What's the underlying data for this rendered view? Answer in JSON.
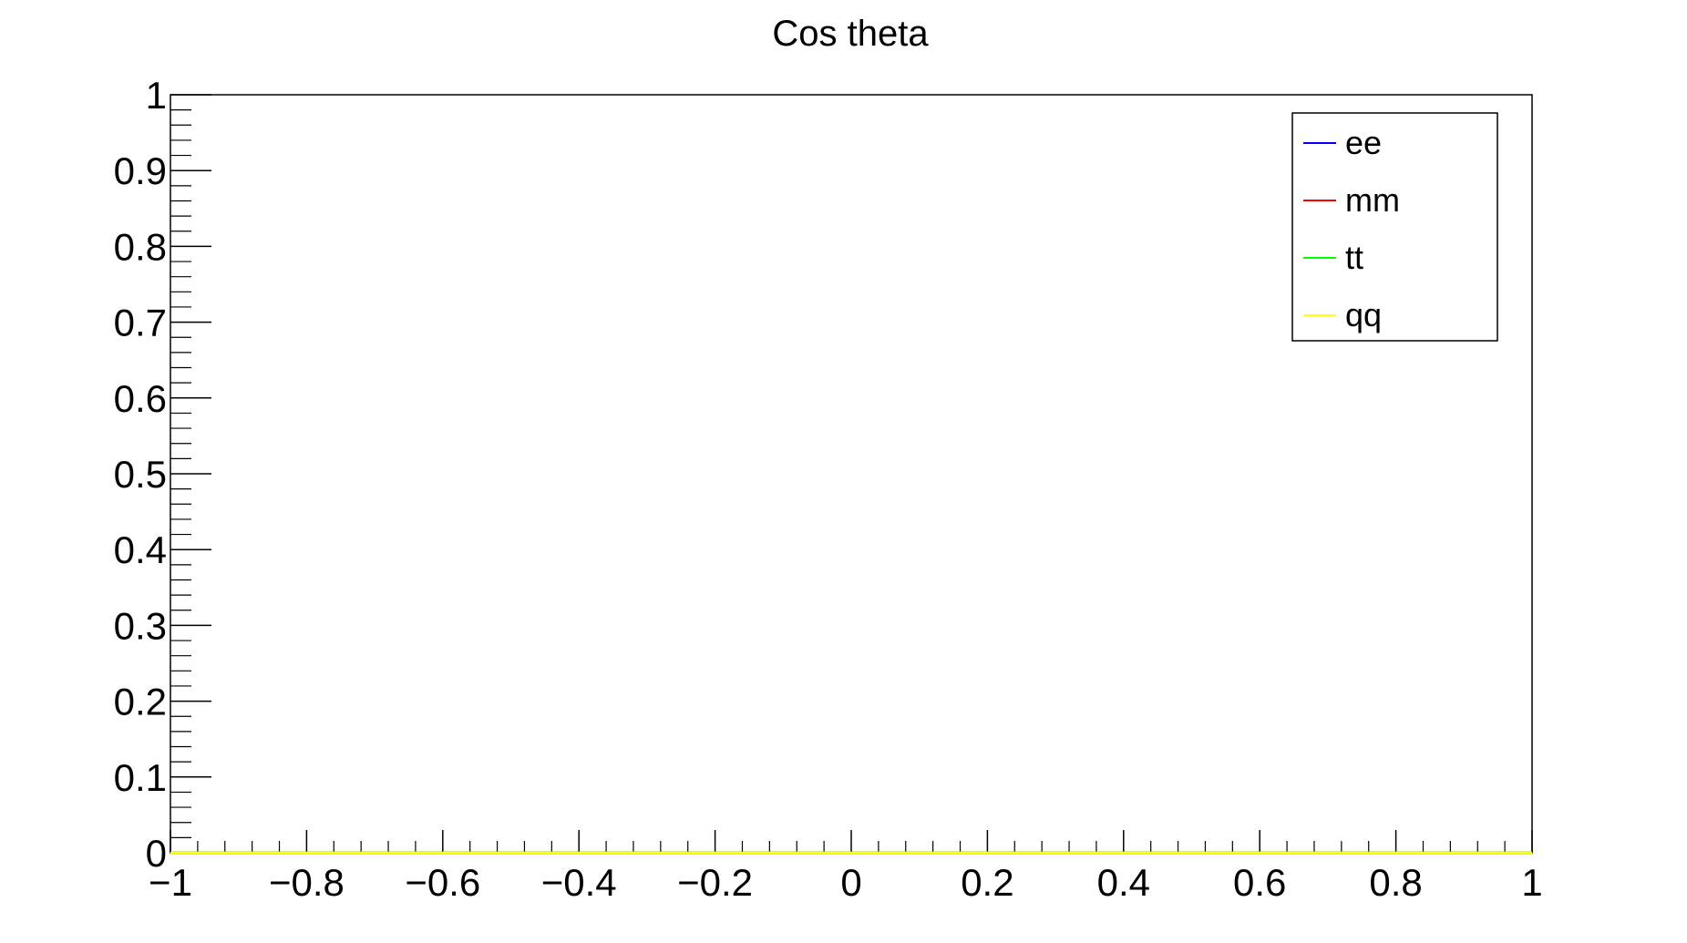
{
  "chart_data": {
    "type": "line",
    "title": "Cos theta",
    "xlabel": "",
    "ylabel": "",
    "xlim": [
      -1,
      1
    ],
    "ylim": [
      0,
      1
    ],
    "x_ticks": [
      -1,
      -0.8,
      -0.6,
      -0.4,
      -0.2,
      0,
      0.2,
      0.4,
      0.6,
      0.8,
      1
    ],
    "x_tick_labels": [
      "−1",
      "−0.8",
      "−0.6",
      "−0.4",
      "−0.2",
      "0",
      "0.2",
      "0.4",
      "0.6",
      "0.8",
      "1"
    ],
    "y_ticks": [
      0,
      0.1,
      0.2,
      0.3,
      0.4,
      0.5,
      0.6,
      0.7,
      0.8,
      0.9,
      1
    ],
    "y_tick_labels": [
      "0",
      "0.1",
      "0.2",
      "0.3",
      "0.4",
      "0.5",
      "0.6",
      "0.7",
      "0.8",
      "0.9",
      "1"
    ],
    "grid": false,
    "legend_position": "top-right",
    "series": [
      {
        "name": "ee",
        "color": "#0000ff",
        "x": [
          -1,
          1
        ],
        "y": [
          0,
          0
        ]
      },
      {
        "name": "mm",
        "color": "#ff0000",
        "x": [
          -1,
          1
        ],
        "y": [
          0,
          0
        ]
      },
      {
        "name": "tt",
        "color": "#00ff00",
        "x": [
          -1,
          1
        ],
        "y": [
          0,
          0
        ]
      },
      {
        "name": "qq",
        "color": "#ffff00",
        "x": [
          -1,
          1
        ],
        "y": [
          0,
          0
        ]
      }
    ]
  }
}
